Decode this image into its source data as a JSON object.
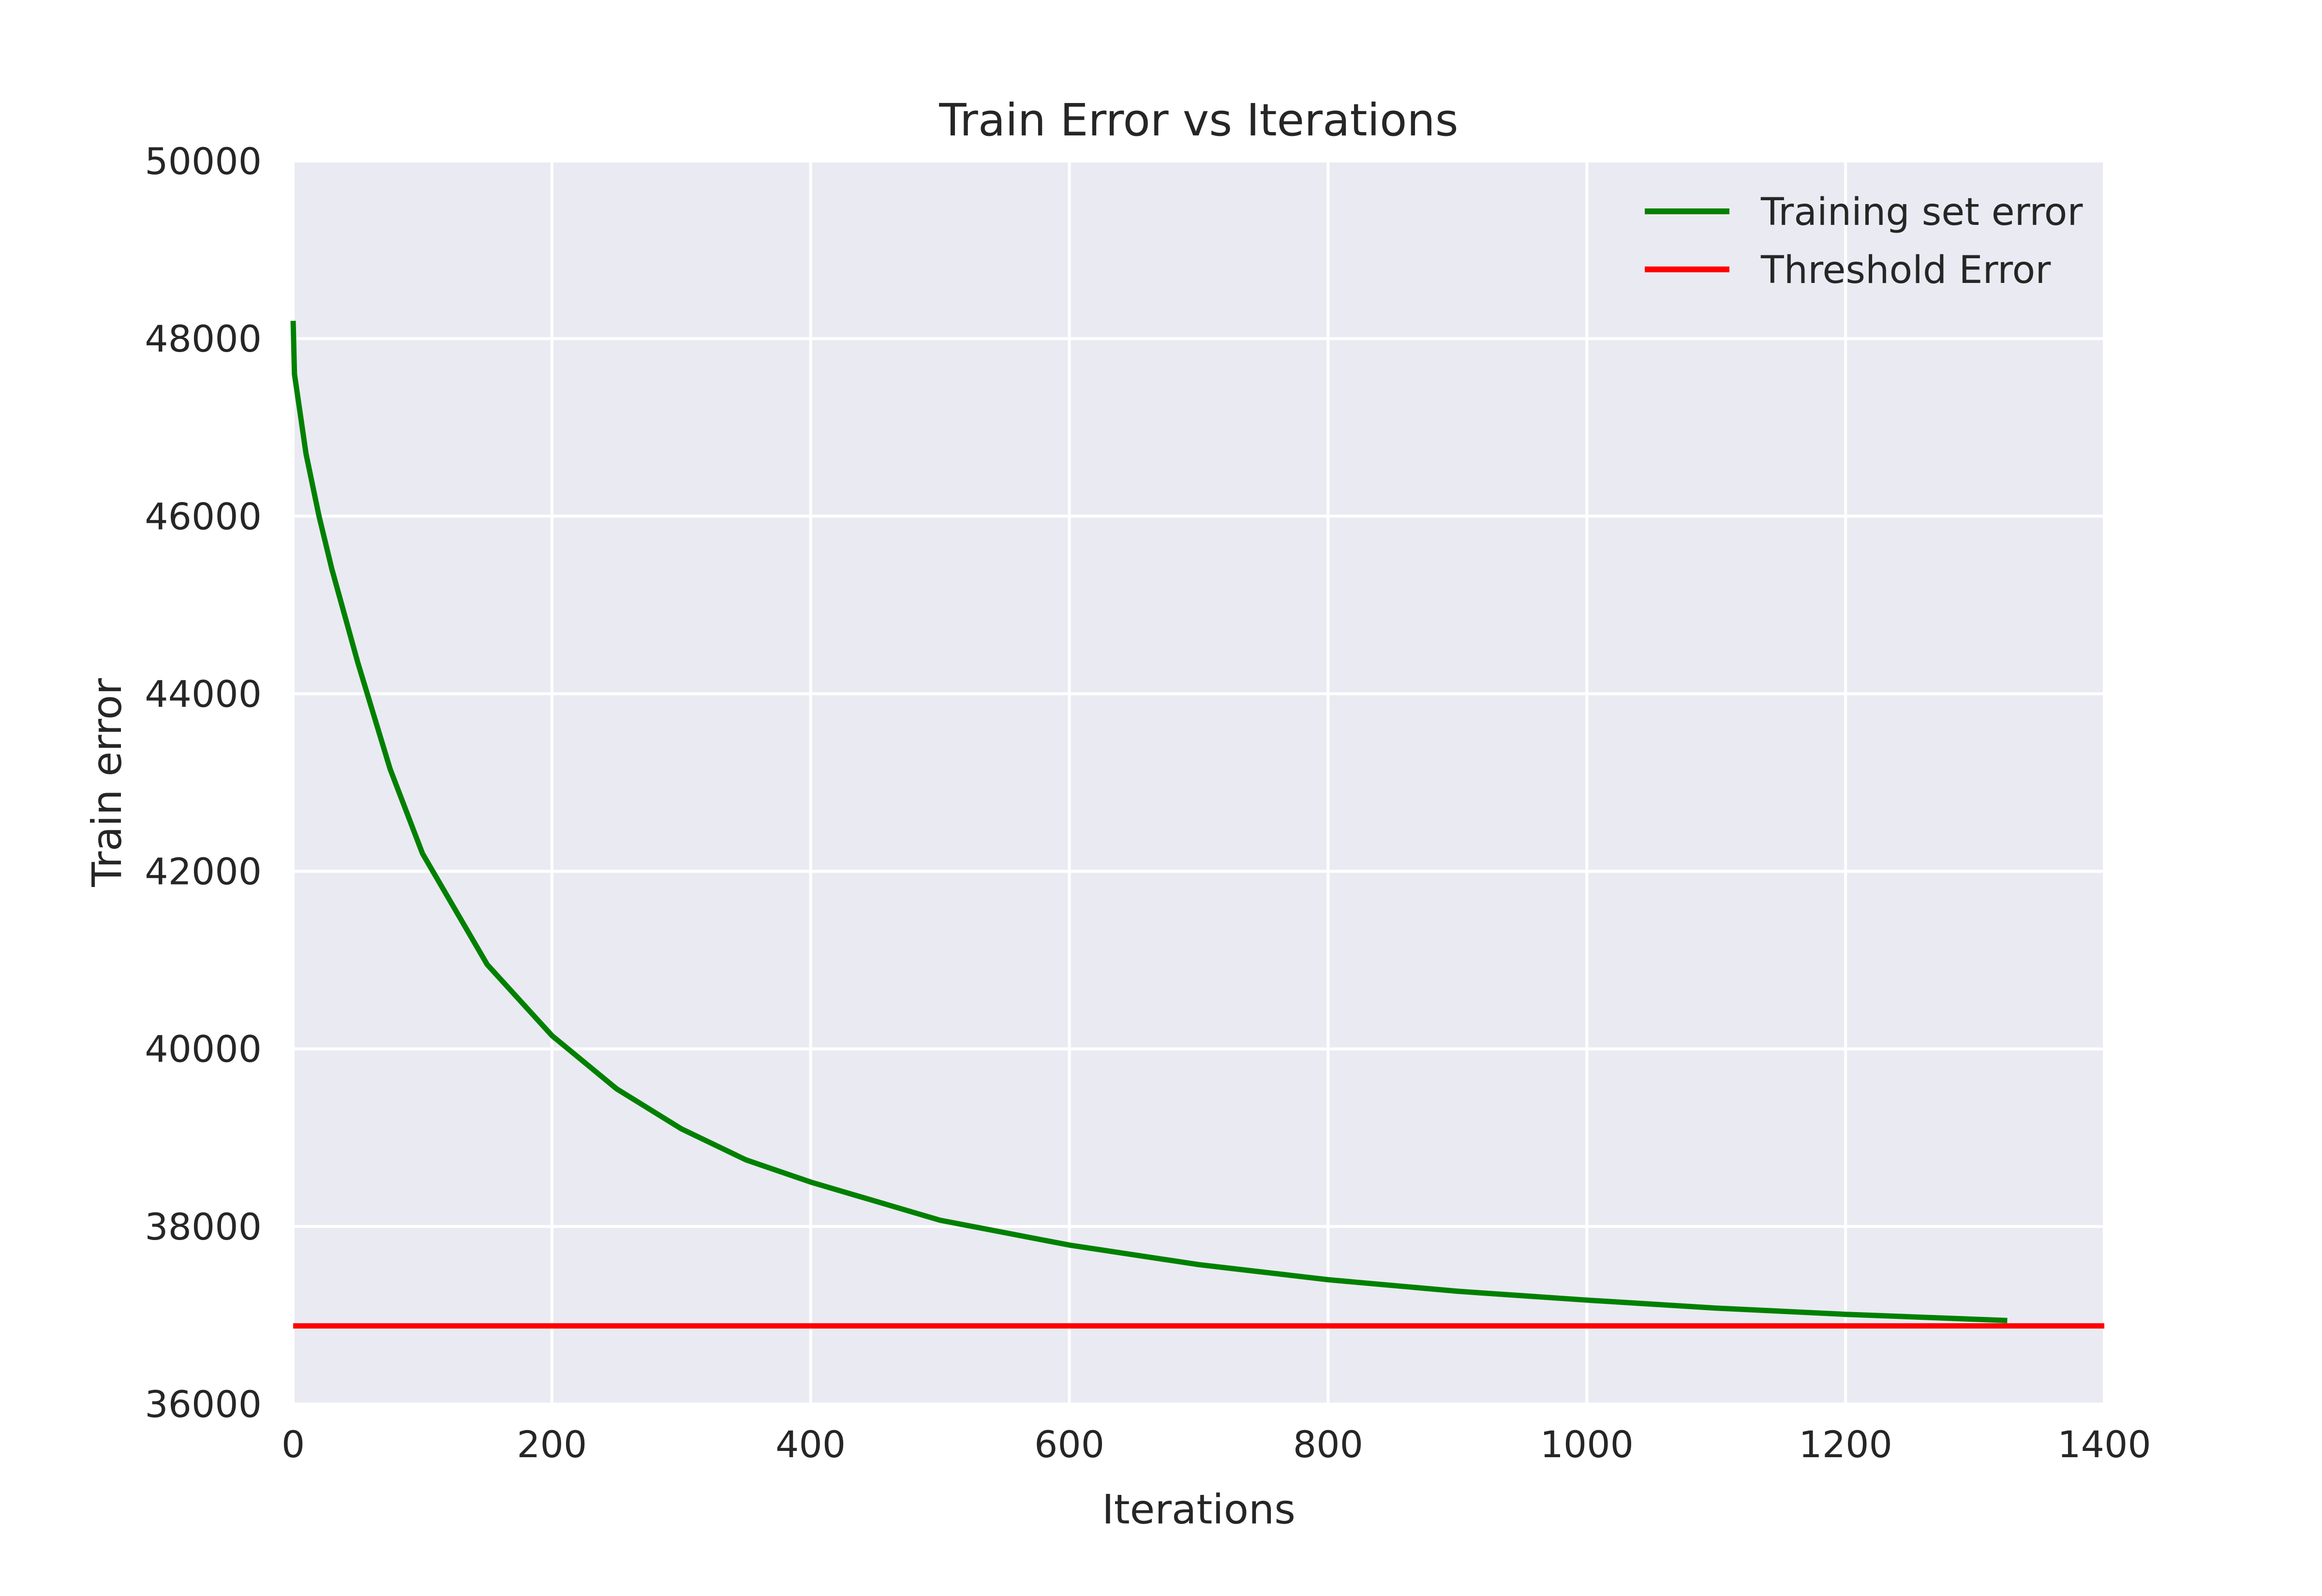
{
  "chart_data": {
    "type": "line",
    "title": "Train Error vs Iterations",
    "xlabel": "Iterations",
    "ylabel": "Train error",
    "xlim": [
      0,
      1400
    ],
    "ylim": [
      36000,
      50000
    ],
    "xticks": [
      0,
      200,
      400,
      600,
      800,
      1000,
      1200,
      1400
    ],
    "yticks": [
      36000,
      38000,
      40000,
      42000,
      44000,
      46000,
      48000,
      50000
    ],
    "grid": true,
    "legend_position": "top-right",
    "background_color": "#eaeaf2",
    "series": [
      {
        "name": "Training set error",
        "color": "#008000",
        "x": [
          0,
          1,
          5,
          10,
          20,
          30,
          50,
          75,
          100,
          150,
          200,
          250,
          300,
          350,
          400,
          500,
          600,
          700,
          800,
          900,
          1000,
          1100,
          1200,
          1325
        ],
        "y": [
          48200,
          47600,
          47200,
          46700,
          46000,
          45400,
          44350,
          43150,
          42200,
          40950,
          40150,
          39550,
          39100,
          38750,
          38500,
          38070,
          37790,
          37570,
          37400,
          37270,
          37170,
          37080,
          37010,
          36940
        ]
      },
      {
        "name": "Threshold Error",
        "color": "#ff0000",
        "x": [
          0,
          1400
        ],
        "y": [
          36880,
          36880
        ]
      }
    ]
  }
}
